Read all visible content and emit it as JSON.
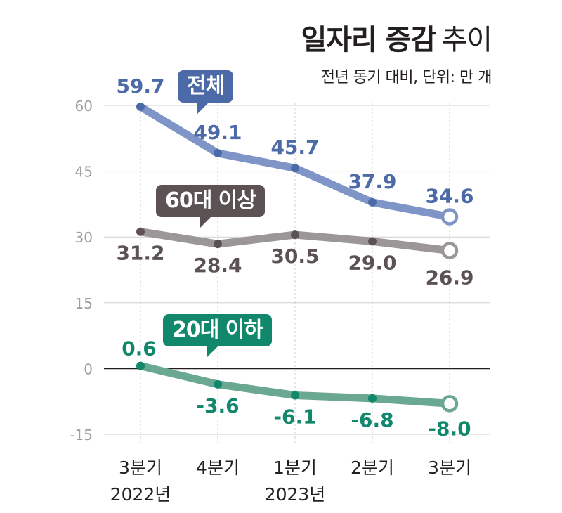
{
  "title": {
    "main": "일자리 증감",
    "sub": "추이",
    "subtitle": "전년 동기 대비, 단위: 만 개"
  },
  "colors": {
    "total": "#4d6aa8",
    "total_light": "#7f95c7",
    "over60": "#5c5254",
    "over60_light": "#9b9698",
    "under20": "#11876b",
    "under20_light": "#6ba891",
    "axis_text": "#9e9e9e",
    "grid": "#cfcfcf",
    "zero_line": "#231f20"
  },
  "chart_data": {
    "type": "line",
    "title": "일자리 증감 추이",
    "subtitle": "전년 동기 대비, 단위: 만 개",
    "categories": [
      [
        "3분기",
        "2022년"
      ],
      [
        "4분기",
        ""
      ],
      [
        "1분기",
        "2023년"
      ],
      [
        "2분기",
        ""
      ],
      [
        "3분기",
        ""
      ]
    ],
    "ylim": [
      -15,
      60
    ],
    "yticks": [
      60,
      45,
      30,
      15,
      0,
      -15
    ],
    "grid": true,
    "series": [
      {
        "name": "전체",
        "key": "total",
        "values": [
          59.7,
          49.1,
          45.7,
          37.9,
          34.6
        ],
        "labels": [
          "59.7",
          "49.1",
          "45.7",
          "37.9",
          "34.6"
        ]
      },
      {
        "name": "60대 이상",
        "key": "over60",
        "values": [
          31.2,
          28.4,
          30.5,
          29.0,
          26.9
        ],
        "labels": [
          "31.2",
          "28.4",
          "30.5",
          "29.0",
          "26.9"
        ]
      },
      {
        "name": "20대 이하",
        "key": "under20",
        "values": [
          0.6,
          -3.6,
          -6.1,
          -6.8,
          -8.0
        ],
        "labels": [
          "0.6",
          "-3.6",
          "-6.1",
          "-6.8",
          "-8.0"
        ]
      }
    ]
  }
}
